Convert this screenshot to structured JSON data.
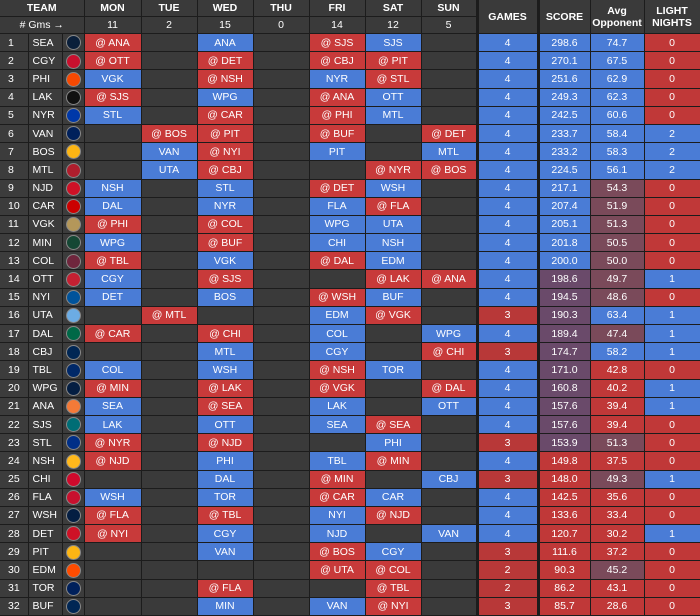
{
  "header": {
    "team": "TEAM",
    "gms_label": "# Gms →",
    "days": [
      {
        "label": "MON",
        "count": "11"
      },
      {
        "label": "TUE",
        "count": "2"
      },
      {
        "label": "WED",
        "count": "15"
      },
      {
        "label": "THU",
        "count": "0"
      },
      {
        "label": "FRI",
        "count": "14"
      },
      {
        "label": "SAT",
        "count": "12"
      },
      {
        "label": "SUN",
        "count": "5"
      }
    ],
    "games": "GAMES",
    "score": "SCORE",
    "avg_line1": "Avg",
    "avg_line2": "Opponent",
    "light_line1": "LIGHT",
    "light_line2": "NIGHTS"
  },
  "rows": [
    {
      "rank": "1",
      "team": "SEA",
      "logo": "kraken-logo-icon",
      "logo_color": "#0a1f3a",
      "mon": "@ ANA",
      "tue": "",
      "wed": "ANA",
      "thu": "",
      "fri": "@ SJS",
      "sat": "SJS",
      "sun": "",
      "games": "4",
      "score": "298.6",
      "avg": "74.7",
      "light": "0"
    },
    {
      "rank": "2",
      "team": "CGY",
      "logo": "flames-logo-icon",
      "logo_color": "#c8102e",
      "mon": "@ OTT",
      "tue": "",
      "wed": "@ DET",
      "thu": "",
      "fri": "@ CBJ",
      "sat": "@ PIT",
      "sun": "",
      "games": "4",
      "score": "270.1",
      "avg": "67.5",
      "light": "0"
    },
    {
      "rank": "3",
      "team": "PHI",
      "logo": "flyers-logo-icon",
      "logo_color": "#f74902",
      "mon": "VGK",
      "tue": "",
      "wed": "@ NSH",
      "thu": "",
      "fri": "NYR",
      "sat": "@ STL",
      "sun": "",
      "games": "4",
      "score": "251.6",
      "avg": "62.9",
      "light": "0"
    },
    {
      "rank": "4",
      "team": "LAK",
      "logo": "kings-logo-icon",
      "logo_color": "#111111",
      "mon": "@ SJS",
      "tue": "",
      "wed": "WPG",
      "thu": "",
      "fri": "@ ANA",
      "sat": "OTT",
      "sun": "",
      "games": "4",
      "score": "249.3",
      "avg": "62.3",
      "light": "0"
    },
    {
      "rank": "5",
      "team": "NYR",
      "logo": "rangers-logo-icon",
      "logo_color": "#0038a8",
      "mon": "STL",
      "tue": "",
      "wed": "@ CAR",
      "thu": "",
      "fri": "@ PHI",
      "sat": "MTL",
      "sun": "",
      "games": "4",
      "score": "242.5",
      "avg": "60.6",
      "light": "0"
    },
    {
      "rank": "6",
      "team": "VAN",
      "logo": "canucks-logo-icon",
      "logo_color": "#00205b",
      "mon": "",
      "tue": "@ BOS",
      "wed": "@ PIT",
      "thu": "",
      "fri": "@ BUF",
      "sat": "",
      "sun": "@ DET",
      "games": "4",
      "score": "233.7",
      "avg": "58.4",
      "light": "2"
    },
    {
      "rank": "7",
      "team": "BOS",
      "logo": "bruins-logo-icon",
      "logo_color": "#fcb514",
      "mon": "",
      "tue": "VAN",
      "wed": "@ NYI",
      "thu": "",
      "fri": "PIT",
      "sat": "",
      "sun": "MTL",
      "games": "4",
      "score": "233.2",
      "avg": "58.3",
      "light": "2"
    },
    {
      "rank": "8",
      "team": "MTL",
      "logo": "canadiens-logo-icon",
      "logo_color": "#af1e2d",
      "mon": "",
      "tue": "UTA",
      "wed": "@ CBJ",
      "thu": "",
      "fri": "",
      "sat": "@ NYR",
      "sun": "@ BOS",
      "games": "4",
      "score": "224.5",
      "avg": "56.1",
      "light": "2"
    },
    {
      "rank": "9",
      "team": "NJD",
      "logo": "devils-logo-icon",
      "logo_color": "#ce1126",
      "mon": "NSH",
      "tue": "",
      "wed": "STL",
      "thu": "",
      "fri": "@ DET",
      "sat": "WSH",
      "sun": "",
      "games": "4",
      "score": "217.1",
      "avg": "54.3",
      "light": "0"
    },
    {
      "rank": "10",
      "team": "CAR",
      "logo": "hurricanes-logo-icon",
      "logo_color": "#cc0000",
      "mon": "DAL",
      "tue": "",
      "wed": "NYR",
      "thu": "",
      "fri": "FLA",
      "sat": "@ FLA",
      "sun": "",
      "games": "4",
      "score": "207.4",
      "avg": "51.9",
      "light": "0"
    },
    {
      "rank": "11",
      "team": "VGK",
      "logo": "golden-knights-logo-icon",
      "logo_color": "#b4975a",
      "mon": "@ PHI",
      "tue": "",
      "wed": "@ COL",
      "thu": "",
      "fri": "WPG",
      "sat": "UTA",
      "sun": "",
      "games": "4",
      "score": "205.1",
      "avg": "51.3",
      "light": "0"
    },
    {
      "rank": "12",
      "team": "MIN",
      "logo": "wild-logo-icon",
      "logo_color": "#154734",
      "mon": "WPG",
      "tue": "",
      "wed": "@ BUF",
      "thu": "",
      "fri": "CHI",
      "sat": "NSH",
      "sun": "",
      "games": "4",
      "score": "201.8",
      "avg": "50.5",
      "light": "0"
    },
    {
      "rank": "13",
      "team": "COL",
      "logo": "avalanche-logo-icon",
      "logo_color": "#6f263d",
      "mon": "@ TBL",
      "tue": "",
      "wed": "VGK",
      "thu": "",
      "fri": "@ DAL",
      "sat": "EDM",
      "sun": "",
      "games": "4",
      "score": "200.0",
      "avg": "50.0",
      "light": "0"
    },
    {
      "rank": "14",
      "team": "OTT",
      "logo": "senators-logo-icon",
      "logo_color": "#c52032",
      "mon": "CGY",
      "tue": "",
      "wed": "@ SJS",
      "thu": "",
      "fri": "",
      "sat": "@ LAK",
      "sun": "@ ANA",
      "games": "4",
      "score": "198.6",
      "avg": "49.7",
      "light": "1"
    },
    {
      "rank": "15",
      "team": "NYI",
      "logo": "islanders-logo-icon",
      "logo_color": "#00539b",
      "mon": "DET",
      "tue": "",
      "wed": "BOS",
      "thu": "",
      "fri": "@ WSH",
      "sat": "BUF",
      "sun": "",
      "games": "4",
      "score": "194.5",
      "avg": "48.6",
      "light": "0"
    },
    {
      "rank": "16",
      "team": "UTA",
      "logo": "utah-logo-icon",
      "logo_color": "#6cace4",
      "mon": "",
      "tue": "@ MTL",
      "wed": "",
      "thu": "",
      "fri": "EDM",
      "sat": "@ VGK",
      "sun": "",
      "games": "3",
      "score": "190.3",
      "avg": "63.4",
      "light": "1"
    },
    {
      "rank": "17",
      "team": "DAL",
      "logo": "stars-logo-icon",
      "logo_color": "#006847",
      "mon": "@ CAR",
      "tue": "",
      "wed": "@ CHI",
      "thu": "",
      "fri": "COL",
      "sat": "",
      "sun": "WPG",
      "games": "4",
      "score": "189.4",
      "avg": "47.4",
      "light": "1"
    },
    {
      "rank": "18",
      "team": "CBJ",
      "logo": "blue-jackets-logo-icon",
      "logo_color": "#002654",
      "mon": "",
      "tue": "",
      "wed": "MTL",
      "thu": "",
      "fri": "CGY",
      "sat": "",
      "sun": "@ CHI",
      "games": "3",
      "score": "174.7",
      "avg": "58.2",
      "light": "1"
    },
    {
      "rank": "19",
      "team": "TBL",
      "logo": "lightning-logo-icon",
      "logo_color": "#002868",
      "mon": "COL",
      "tue": "",
      "wed": "WSH",
      "thu": "",
      "fri": "@ NSH",
      "sat": "TOR",
      "sun": "",
      "games": "4",
      "score": "171.0",
      "avg": "42.8",
      "light": "0"
    },
    {
      "rank": "20",
      "team": "WPG",
      "logo": "jets-logo-icon",
      "logo_color": "#041e42",
      "mon": "@ MIN",
      "tue": "",
      "wed": "@ LAK",
      "thu": "",
      "fri": "@ VGK",
      "sat": "",
      "sun": "@ DAL",
      "games": "4",
      "score": "160.8",
      "avg": "40.2",
      "light": "1"
    },
    {
      "rank": "21",
      "team": "ANA",
      "logo": "ducks-logo-icon",
      "logo_color": "#f47a38",
      "mon": "SEA",
      "tue": "",
      "wed": "@ SEA",
      "thu": "",
      "fri": "LAK",
      "sat": "",
      "sun": "OTT",
      "games": "4",
      "score": "157.6",
      "avg": "39.4",
      "light": "1"
    },
    {
      "rank": "22",
      "team": "SJS",
      "logo": "sharks-logo-icon",
      "logo_color": "#006d75",
      "mon": "LAK",
      "tue": "",
      "wed": "OTT",
      "thu": "",
      "fri": "SEA",
      "sat": "@ SEA",
      "sun": "",
      "games": "4",
      "score": "157.6",
      "avg": "39.4",
      "light": "0"
    },
    {
      "rank": "23",
      "team": "STL",
      "logo": "blues-logo-icon",
      "logo_color": "#002f87",
      "mon": "@ NYR",
      "tue": "",
      "wed": "@ NJD",
      "thu": "",
      "fri": "",
      "sat": "PHI",
      "sun": "",
      "games": "3",
      "score": "153.9",
      "avg": "51.3",
      "light": "0"
    },
    {
      "rank": "24",
      "team": "NSH",
      "logo": "predators-logo-icon",
      "logo_color": "#ffb81c",
      "mon": "@ NJD",
      "tue": "",
      "wed": "PHI",
      "thu": "",
      "fri": "TBL",
      "sat": "@ MIN",
      "sun": "",
      "games": "4",
      "score": "149.8",
      "avg": "37.5",
      "light": "0"
    },
    {
      "rank": "25",
      "team": "CHI",
      "logo": "blackhawks-logo-icon",
      "logo_color": "#cf0a2c",
      "mon": "",
      "tue": "",
      "wed": "DAL",
      "thu": "",
      "fri": "@ MIN",
      "sat": "",
      "sun": "CBJ",
      "games": "3",
      "score": "148.0",
      "avg": "49.3",
      "light": "1"
    },
    {
      "rank": "26",
      "team": "FLA",
      "logo": "panthers-logo-icon",
      "logo_color": "#c8102e",
      "mon": "WSH",
      "tue": "",
      "wed": "TOR",
      "thu": "",
      "fri": "@ CAR",
      "sat": "CAR",
      "sun": "",
      "games": "4",
      "score": "142.5",
      "avg": "35.6",
      "light": "0"
    },
    {
      "rank": "27",
      "team": "WSH",
      "logo": "capitals-logo-icon",
      "logo_color": "#041e42",
      "mon": "@ FLA",
      "tue": "",
      "wed": "@ TBL",
      "thu": "",
      "fri": "NYI",
      "sat": "@ NJD",
      "sun": "",
      "games": "4",
      "score": "133.6",
      "avg": "33.4",
      "light": "0"
    },
    {
      "rank": "28",
      "team": "DET",
      "logo": "red-wings-logo-icon",
      "logo_color": "#ce1126",
      "mon": "@ NYI",
      "tue": "",
      "wed": "CGY",
      "thu": "",
      "fri": "NJD",
      "sat": "",
      "sun": "VAN",
      "games": "4",
      "score": "120.7",
      "avg": "30.2",
      "light": "1"
    },
    {
      "rank": "29",
      "team": "PIT",
      "logo": "penguins-logo-icon",
      "logo_color": "#fcb514",
      "mon": "",
      "tue": "",
      "wed": "VAN",
      "thu": "",
      "fri": "@ BOS",
      "sat": "CGY",
      "sun": "",
      "games": "3",
      "score": "111.6",
      "avg": "37.2",
      "light": "0"
    },
    {
      "rank": "30",
      "team": "EDM",
      "logo": "oilers-logo-icon",
      "logo_color": "#ff4c00",
      "mon": "",
      "tue": "",
      "wed": "",
      "thu": "",
      "fri": "@ UTA",
      "sat": "@ COL",
      "sun": "",
      "games": "2",
      "score": "90.3",
      "avg": "45.2",
      "light": "0"
    },
    {
      "rank": "31",
      "team": "TOR",
      "logo": "maple-leafs-logo-icon",
      "logo_color": "#00205b",
      "mon": "",
      "tue": "",
      "wed": "@ FLA",
      "thu": "",
      "fri": "",
      "sat": "@ TBL",
      "sun": "",
      "games": "2",
      "score": "86.2",
      "avg": "43.1",
      "light": "0"
    },
    {
      "rank": "32",
      "team": "BUF",
      "logo": "sabres-logo-icon",
      "logo_color": "#002654",
      "mon": "",
      "tue": "",
      "wed": "MIN",
      "thu": "",
      "fri": "VAN",
      "sat": "@ NYI",
      "sun": "",
      "games": "3",
      "score": "85.7",
      "avg": "28.6",
      "light": "0"
    }
  ]
}
